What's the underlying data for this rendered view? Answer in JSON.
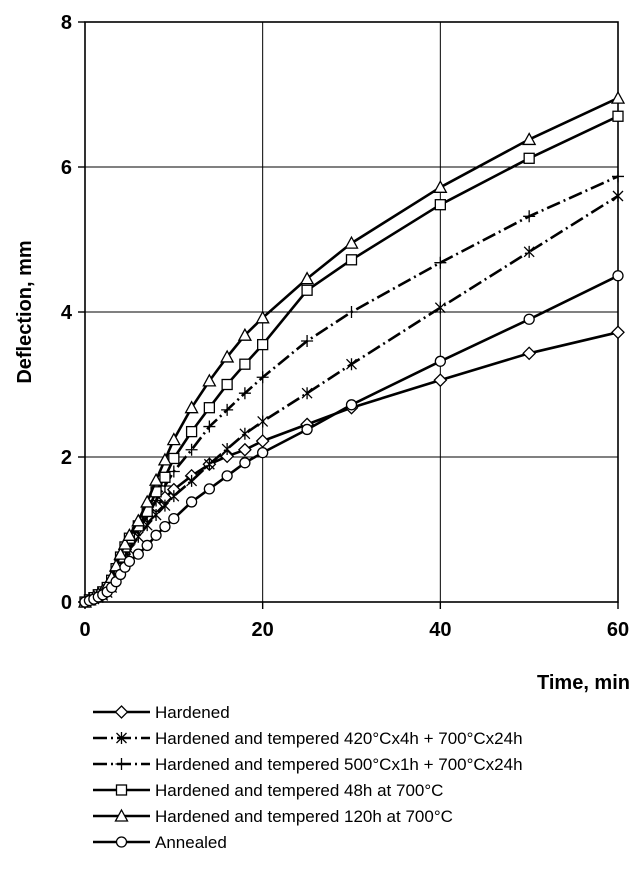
{
  "chart_data": {
    "type": "line",
    "xlabel": "Time, min",
    "ylabel": "Deflection, mm",
    "xlim": [
      0,
      60
    ],
    "ylim": [
      0,
      8
    ],
    "x_ticks": [
      0,
      20,
      40,
      60
    ],
    "y_ticks": [
      0,
      2,
      4,
      6,
      8
    ],
    "grid": true,
    "legend_position": "bottom",
    "series": [
      {
        "name": "Hardened",
        "marker": "diamond",
        "dash": "solid",
        "points": [
          [
            0,
            0
          ],
          [
            0.5,
            0.02
          ],
          [
            1,
            0.05
          ],
          [
            1.5,
            0.08
          ],
          [
            2,
            0.12
          ],
          [
            2.5,
            0.18
          ],
          [
            3,
            0.28
          ],
          [
            3.5,
            0.42
          ],
          [
            4,
            0.58
          ],
          [
            4.5,
            0.72
          ],
          [
            5,
            0.84
          ],
          [
            6,
            1.02
          ],
          [
            7,
            1.18
          ],
          [
            8,
            1.32
          ],
          [
            9,
            1.44
          ],
          [
            10,
            1.55
          ],
          [
            12,
            1.74
          ],
          [
            14,
            1.9
          ],
          [
            16,
            2.01
          ],
          [
            18,
            2.1
          ],
          [
            20,
            2.22
          ],
          [
            25,
            2.45
          ],
          [
            30,
            2.68
          ],
          [
            40,
            3.06
          ],
          [
            50,
            3.43
          ],
          [
            60,
            3.72
          ]
        ]
      },
      {
        "name": "Hardened and tempered 420°Cx4h + 700°Cx24h",
        "marker": "asterisk",
        "dash": "dashdot",
        "points": [
          [
            0,
            0
          ],
          [
            0.5,
            0.02
          ],
          [
            1,
            0.04
          ],
          [
            1.5,
            0.06
          ],
          [
            2,
            0.09
          ],
          [
            2.5,
            0.13
          ],
          [
            3,
            0.2
          ],
          [
            3.5,
            0.32
          ],
          [
            4,
            0.46
          ],
          [
            4.5,
            0.6
          ],
          [
            5,
            0.72
          ],
          [
            6,
            0.9
          ],
          [
            7,
            1.06
          ],
          [
            8,
            1.2
          ],
          [
            9,
            1.33
          ],
          [
            10,
            1.46
          ],
          [
            12,
            1.67
          ],
          [
            14,
            1.9
          ],
          [
            16,
            2.11
          ],
          [
            18,
            2.32
          ],
          [
            20,
            2.49
          ],
          [
            25,
            2.88
          ],
          [
            30,
            3.28
          ],
          [
            40,
            4.06
          ],
          [
            50,
            4.83
          ],
          [
            60,
            5.6
          ]
        ]
      },
      {
        "name": "Hardened and tempered 500°Cx1h + 700°Cx24h",
        "marker": "plus",
        "dash": "dashdot",
        "points": [
          [
            0,
            0
          ],
          [
            0.5,
            0.02
          ],
          [
            1,
            0.04
          ],
          [
            1.5,
            0.07
          ],
          [
            2,
            0.1
          ],
          [
            2.5,
            0.15
          ],
          [
            3,
            0.25
          ],
          [
            3.5,
            0.38
          ],
          [
            4,
            0.52
          ],
          [
            4.5,
            0.66
          ],
          [
            5,
            0.8
          ],
          [
            6,
            1.0
          ],
          [
            7,
            1.18
          ],
          [
            8,
            1.4
          ],
          [
            9,
            1.6
          ],
          [
            10,
            1.8
          ],
          [
            12,
            2.1
          ],
          [
            14,
            2.42
          ],
          [
            16,
            2.65
          ],
          [
            18,
            2.88
          ],
          [
            20,
            3.1
          ],
          [
            25,
            3.6
          ],
          [
            30,
            4.0
          ],
          [
            40,
            4.68
          ],
          [
            50,
            5.32
          ],
          [
            60,
            5.87
          ]
        ]
      },
      {
        "name": "Hardened and tempered 48h at 700°C",
        "marker": "square",
        "dash": "solid",
        "points": [
          [
            0,
            0
          ],
          [
            0.5,
            0.03
          ],
          [
            1,
            0.06
          ],
          [
            1.5,
            0.1
          ],
          [
            2,
            0.14
          ],
          [
            2.5,
            0.2
          ],
          [
            3,
            0.3
          ],
          [
            3.5,
            0.46
          ],
          [
            4,
            0.62
          ],
          [
            4.5,
            0.76
          ],
          [
            5,
            0.88
          ],
          [
            6,
            1.05
          ],
          [
            7,
            1.25
          ],
          [
            8,
            1.52
          ],
          [
            9,
            1.72
          ],
          [
            10,
            1.98
          ],
          [
            12,
            2.35
          ],
          [
            14,
            2.68
          ],
          [
            16,
            3.0
          ],
          [
            18,
            3.28
          ],
          [
            20,
            3.55
          ],
          [
            25,
            4.3
          ],
          [
            30,
            4.72
          ],
          [
            40,
            5.48
          ],
          [
            50,
            6.12
          ],
          [
            60,
            6.7
          ]
        ]
      },
      {
        "name": "Hardened and tempered 120h at 700°C",
        "marker": "triangle",
        "dash": "solid",
        "points": [
          [
            0,
            0
          ],
          [
            0.5,
            0.03
          ],
          [
            1,
            0.07
          ],
          [
            1.5,
            0.11
          ],
          [
            2,
            0.16
          ],
          [
            2.5,
            0.23
          ],
          [
            3,
            0.34
          ],
          [
            3.5,
            0.5
          ],
          [
            4,
            0.66
          ],
          [
            4.5,
            0.8
          ],
          [
            5,
            0.92
          ],
          [
            6,
            1.12
          ],
          [
            7,
            1.38
          ],
          [
            8,
            1.68
          ],
          [
            9,
            1.96
          ],
          [
            10,
            2.24
          ],
          [
            12,
            2.68
          ],
          [
            14,
            3.05
          ],
          [
            16,
            3.38
          ],
          [
            18,
            3.68
          ],
          [
            20,
            3.92
          ],
          [
            25,
            4.46
          ],
          [
            30,
            4.95
          ],
          [
            40,
            5.72
          ],
          [
            50,
            6.38
          ],
          [
            60,
            6.95
          ]
        ]
      },
      {
        "name": "Annealed",
        "marker": "circle",
        "dash": "solid",
        "points": [
          [
            0,
            0
          ],
          [
            0.5,
            0.02
          ],
          [
            1,
            0.04
          ],
          [
            1.5,
            0.07
          ],
          [
            2,
            0.1
          ],
          [
            2.5,
            0.14
          ],
          [
            3,
            0.2
          ],
          [
            3.5,
            0.28
          ],
          [
            4,
            0.38
          ],
          [
            4.5,
            0.48
          ],
          [
            5,
            0.56
          ],
          [
            6,
            0.66
          ],
          [
            7,
            0.78
          ],
          [
            8,
            0.92
          ],
          [
            9,
            1.04
          ],
          [
            10,
            1.15
          ],
          [
            12,
            1.38
          ],
          [
            14,
            1.56
          ],
          [
            16,
            1.74
          ],
          [
            18,
            1.92
          ],
          [
            20,
            2.06
          ],
          [
            25,
            2.38
          ],
          [
            30,
            2.72
          ],
          [
            40,
            3.32
          ],
          [
            50,
            3.9
          ],
          [
            60,
            4.5
          ]
        ]
      }
    ]
  }
}
